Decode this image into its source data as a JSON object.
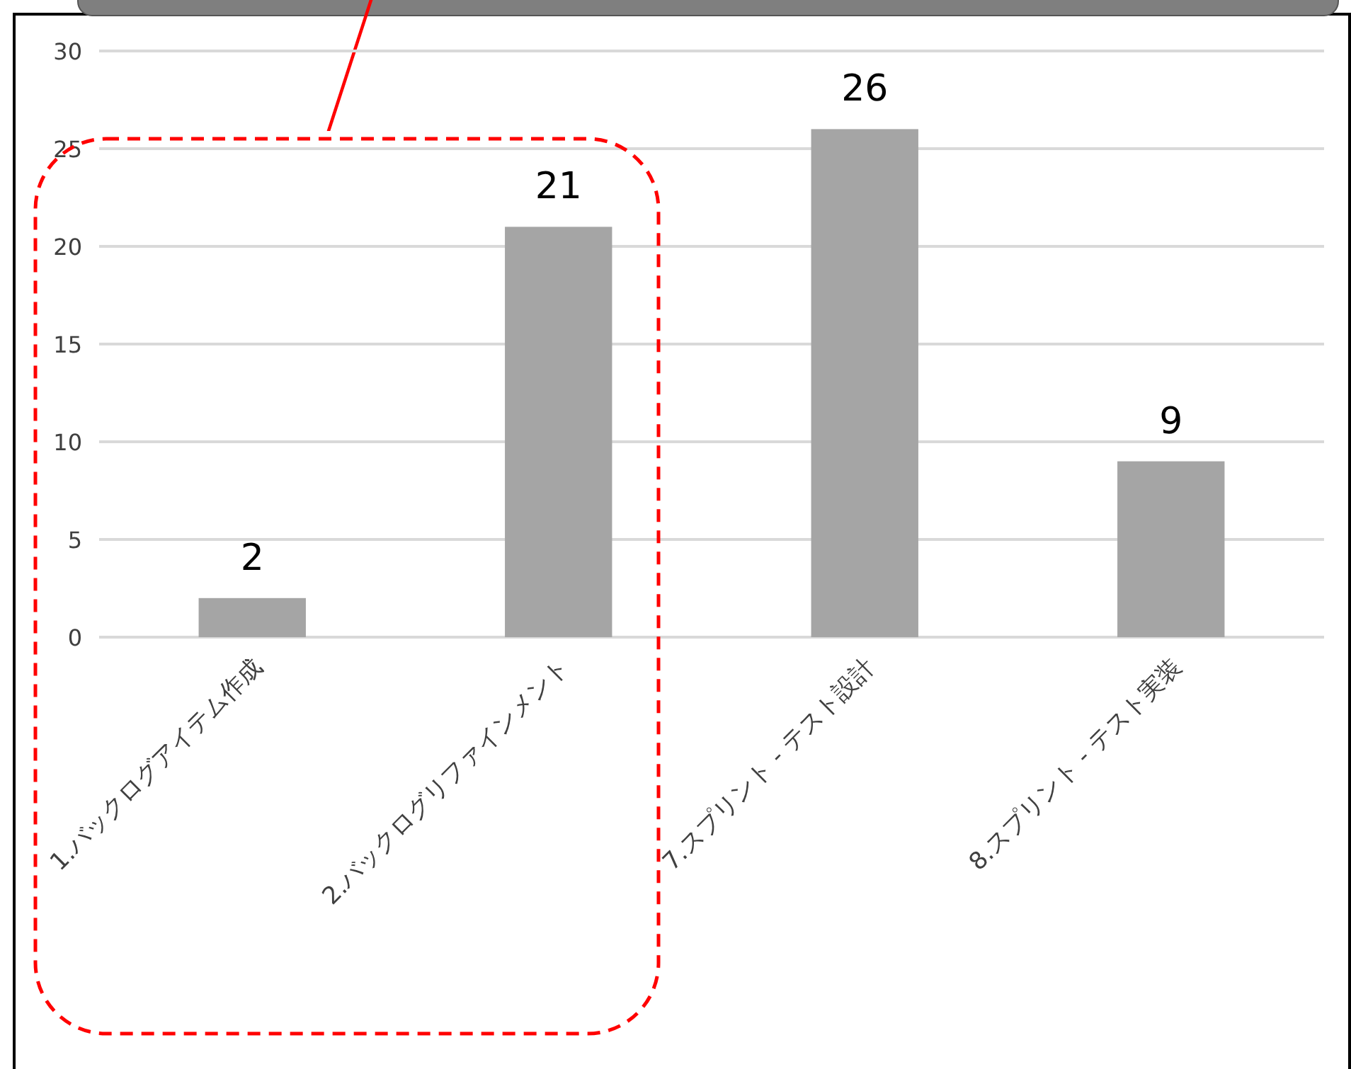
{
  "chart_data": {
    "type": "bar",
    "categories": [
      "1.バックログアイテム作成",
      "2.バックログリファインメント",
      "7.スプリント - テスト設計",
      "8.スプリント - テスト実装"
    ],
    "values": [
      2,
      21,
      26,
      9
    ],
    "color": "#a5a5a5",
    "ylim": [
      0,
      30
    ],
    "yticks": [
      0,
      5,
      10,
      15,
      20,
      25,
      30
    ],
    "grid": "y",
    "data_labels": true
  }
}
